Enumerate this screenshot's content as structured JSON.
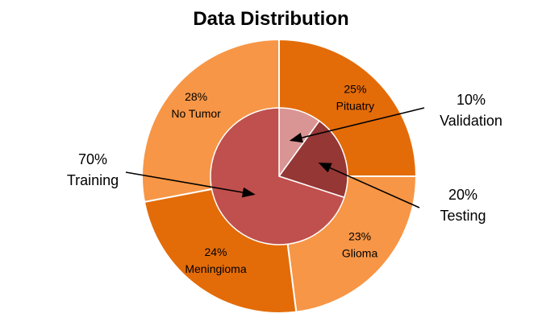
{
  "chart_data": {
    "type": "pie",
    "title": "Data Distribution",
    "outer_ring": {
      "slices": [
        {
          "label": "Pituatry",
          "percent_label": "25%",
          "value": 25,
          "color": "#E36C09"
        },
        {
          "label": "Glioma",
          "percent_label": "23%",
          "value": 23,
          "color": "#F79646"
        },
        {
          "label": "Meningioma",
          "percent_label": "24%",
          "value": 24,
          "color": "#E36C09"
        },
        {
          "label": "No Tumor",
          "percent_label": "28%",
          "value": 28,
          "color": "#F79646"
        }
      ]
    },
    "inner_pie": {
      "slices": [
        {
          "label": "Validation",
          "percent_label": "10%",
          "value": 10,
          "color": "#D99594"
        },
        {
          "label": "Testing",
          "percent_label": "20%",
          "value": 20,
          "color": "#953735"
        },
        {
          "label": "Training",
          "percent_label": "70%",
          "value": 70,
          "color": "#C0504D"
        }
      ]
    },
    "legend": "none",
    "annotations": "callout arrows for inner slices"
  }
}
